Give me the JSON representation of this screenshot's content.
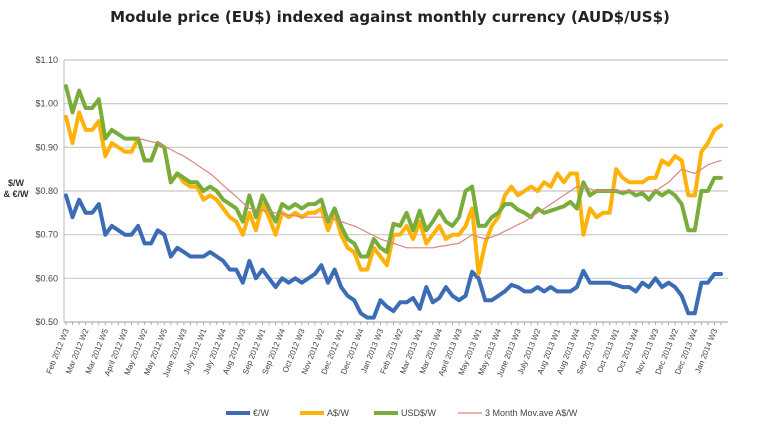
{
  "chart_data": {
    "type": "line",
    "title": "Module price (EU$) indexed against monthly currency (AUD$/US$)",
    "ylabel": [
      "$/W",
      "& €/W"
    ],
    "xlabel": "",
    "ylim": [
      0.5,
      1.1
    ],
    "yticks": [
      0.5,
      0.6,
      0.7,
      0.8,
      0.9,
      1.0,
      1.1
    ],
    "ytick_labels": [
      "$0.50",
      "$0.60",
      "$0.70",
      "$0.80",
      "$0.90",
      "$1.00",
      "$1.10"
    ],
    "grid": true,
    "legend_position": "bottom",
    "x_tick_every_n_weeks": 3,
    "x_tick_labels": [
      "Feb 2012 W3",
      "Mar 2012 W2",
      "Mar 2012 W5",
      "April 2012 W3",
      "May 2012 W2",
      "May 2012 W5",
      "June 2012 W3",
      "July 2012 W1",
      "July 2012 W4",
      "Aug 2012 W3",
      "Sep 2012 W1",
      "Sep 2012 W4",
      "Oct 2012 W3",
      "Nov 2012 W2",
      "Dec 2012 W1",
      "Dec 2012 W4",
      "Jan 2013 W3",
      "Feb 2013 W2",
      "Mar 2013 W1",
      "Mar 2013 W4",
      "April 2013 W3",
      "May 2013 W1",
      "May 2013 W4",
      "June 2013 W3",
      "July 2013 W2",
      "Aug 2013 W1",
      "Aug 2013 W4",
      "Sep 2013 W3",
      "Oct 2013 W1",
      "Oct 2013 W4",
      "Nov 2013 W3",
      "Dec 2013 W2",
      "Dec 2013 W4",
      "Jan 2014 W3"
    ],
    "series": [
      {
        "name": "€/W",
        "color": "#3b6cb5",
        "width": 4,
        "values": [
          0.79,
          0.74,
          0.78,
          0.75,
          0.75,
          0.77,
          0.7,
          0.72,
          0.71,
          0.7,
          0.7,
          0.72,
          0.68,
          0.68,
          0.71,
          0.7,
          0.65,
          0.67,
          0.66,
          0.65,
          0.65,
          0.65,
          0.66,
          0.65,
          0.64,
          0.62,
          0.62,
          0.59,
          0.64,
          0.6,
          0.62,
          0.6,
          0.58,
          0.6,
          0.59,
          0.6,
          0.59,
          0.6,
          0.61,
          0.63,
          0.59,
          0.62,
          0.58,
          0.56,
          0.55,
          0.52,
          0.51,
          0.51,
          0.55,
          0.535,
          0.525,
          0.545,
          0.545,
          0.555,
          0.53,
          0.58,
          0.545,
          0.555,
          0.58,
          0.56,
          0.55,
          0.56,
          0.615,
          0.6,
          0.55,
          0.55,
          0.56,
          0.57,
          0.585,
          0.58,
          0.57,
          0.57,
          0.58,
          0.57,
          0.58,
          0.57,
          0.57,
          0.57,
          0.58,
          0.617,
          0.59,
          0.59,
          0.59,
          0.59,
          0.585,
          0.58,
          0.58,
          0.57,
          0.59,
          0.58,
          0.6,
          0.58,
          0.59,
          0.58,
          0.56,
          0.52,
          0.52,
          0.59,
          0.59,
          0.61,
          0.61
        ]
      },
      {
        "name": "A$/W",
        "color": "#ffb20a",
        "width": 4,
        "values": [
          0.97,
          0.91,
          0.98,
          0.94,
          0.94,
          0.96,
          0.88,
          0.91,
          0.9,
          0.89,
          0.89,
          0.92,
          0.87,
          0.87,
          0.91,
          0.9,
          0.82,
          0.84,
          0.82,
          0.81,
          0.81,
          0.78,
          0.79,
          0.78,
          0.76,
          0.74,
          0.73,
          0.7,
          0.75,
          0.71,
          0.77,
          0.74,
          0.7,
          0.75,
          0.74,
          0.75,
          0.74,
          0.75,
          0.75,
          0.76,
          0.71,
          0.75,
          0.7,
          0.67,
          0.66,
          0.62,
          0.62,
          0.67,
          0.65,
          0.63,
          0.7,
          0.7,
          0.72,
          0.69,
          0.73,
          0.68,
          0.7,
          0.72,
          0.69,
          0.7,
          0.7,
          0.72,
          0.76,
          0.61,
          0.68,
          0.72,
          0.74,
          0.79,
          0.81,
          0.79,
          0.8,
          0.81,
          0.8,
          0.82,
          0.81,
          0.84,
          0.82,
          0.84,
          0.84,
          0.7,
          0.76,
          0.74,
          0.75,
          0.75,
          0.85,
          0.83,
          0.82,
          0.82,
          0.82,
          0.83,
          0.83,
          0.87,
          0.86,
          0.88,
          0.87,
          0.79,
          0.79,
          0.89,
          0.91,
          0.94,
          0.95
        ]
      },
      {
        "name": "USD$/W",
        "color": "#78ad3c",
        "width": 4,
        "values": [
          1.04,
          0.98,
          1.03,
          0.99,
          0.99,
          1.01,
          0.92,
          0.94,
          0.93,
          0.92,
          0.92,
          0.92,
          0.87,
          0.87,
          0.91,
          0.9,
          0.82,
          0.84,
          0.83,
          0.82,
          0.82,
          0.8,
          0.81,
          0.8,
          0.78,
          0.77,
          0.76,
          0.73,
          0.79,
          0.74,
          0.79,
          0.76,
          0.73,
          0.77,
          0.76,
          0.77,
          0.76,
          0.77,
          0.77,
          0.78,
          0.73,
          0.76,
          0.72,
          0.69,
          0.68,
          0.65,
          0.65,
          0.69,
          0.67,
          0.66,
          0.725,
          0.72,
          0.75,
          0.71,
          0.755,
          0.71,
          0.73,
          0.755,
          0.73,
          0.72,
          0.74,
          0.8,
          0.81,
          0.72,
          0.72,
          0.74,
          0.75,
          0.77,
          0.77,
          0.757,
          0.75,
          0.74,
          0.76,
          0.75,
          0.755,
          0.76,
          0.765,
          0.775,
          0.76,
          0.82,
          0.79,
          0.8,
          0.8,
          0.8,
          0.8,
          0.795,
          0.8,
          0.79,
          0.795,
          0.78,
          0.8,
          0.79,
          0.8,
          0.79,
          0.77,
          0.71,
          0.71,
          0.8,
          0.8,
          0.83,
          0.83
        ]
      },
      {
        "name": "3 Month Mov.ave A$/W",
        "color": "#d98580",
        "width": 1.2,
        "values": [
          null,
          null,
          null,
          null,
          null,
          null,
          null,
          null,
          null,
          null,
          null,
          0.92,
          0.917,
          0.913,
          0.91,
          0.902,
          0.895,
          0.887,
          0.88,
          0.87,
          0.86,
          0.85,
          0.84,
          0.827,
          0.813,
          0.8,
          0.787,
          0.773,
          0.76,
          0.758,
          0.755,
          0.753,
          0.75,
          0.748,
          0.745,
          0.743,
          0.74,
          0.74,
          0.74,
          0.74,
          0.74,
          0.735,
          0.73,
          0.725,
          0.72,
          0.713,
          0.705,
          0.698,
          0.69,
          0.685,
          0.68,
          0.675,
          0.67,
          0.67,
          0.67,
          0.67,
          0.67,
          0.673,
          0.675,
          0.678,
          0.68,
          0.69,
          0.7,
          0.695,
          0.69,
          0.695,
          0.7,
          0.708,
          0.715,
          0.723,
          0.73,
          0.74,
          0.75,
          0.76,
          0.77,
          0.78,
          0.79,
          0.8,
          0.81,
          0.81,
          0.805,
          0.8,
          0.8,
          0.8,
          0.8,
          0.8,
          0.8,
          0.8,
          0.8,
          0.8,
          0.8,
          0.81,
          0.82,
          0.835,
          0.85,
          0.845,
          0.84,
          0.85,
          0.86,
          0.865,
          0.87
        ]
      }
    ]
  }
}
